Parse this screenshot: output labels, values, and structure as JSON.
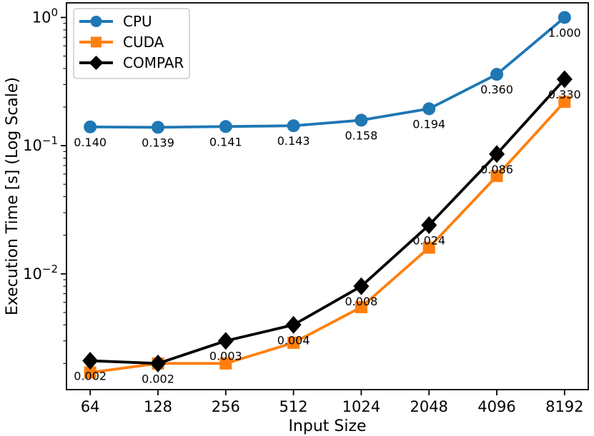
{
  "chart_data": {
    "type": "line",
    "title": "",
    "xlabel": "Input Size",
    "ylabel": "Execution Time [s] (Log Scale)",
    "x_categories": [
      "64",
      "128",
      "256",
      "512",
      "1024",
      "2048",
      "4096",
      "8192"
    ],
    "x_scale": "log2-categorical",
    "y_scale": "log",
    "ylim": [
      0.00125,
      1.3
    ],
    "grid": false,
    "legend_position": "upper left",
    "y_ticks": [
      {
        "base": "10",
        "exp": "0",
        "value": 1
      },
      {
        "base": "10",
        "exp": "−1",
        "value": 0.1
      },
      {
        "base": "10",
        "exp": "−2",
        "value": 0.01
      }
    ],
    "series": [
      {
        "name": "CPU",
        "color": "#1f77b4",
        "marker": "circle",
        "values": [
          0.14,
          0.139,
          0.141,
          0.143,
          0.158,
          0.194,
          0.36,
          1.0
        ],
        "labels": [
          "0.140",
          "0.139",
          "0.141",
          "0.143",
          "0.158",
          "0.194",
          "0.360",
          "1.000"
        ]
      },
      {
        "name": "CUDA",
        "color": "#ff7f0e",
        "marker": "square",
        "values": [
          0.0017,
          0.002,
          0.002,
          0.0029,
          0.0055,
          0.016,
          0.058,
          0.22
        ],
        "labels": []
      },
      {
        "name": "COMPAR",
        "color": "#000000",
        "marker": "diamond",
        "values": [
          0.0021,
          0.002,
          0.003,
          0.004,
          0.008,
          0.024,
          0.086,
          0.33
        ],
        "labels": [
          "0.002",
          "0.002",
          "0.003",
          "0.004",
          "0.008",
          "0.024",
          "0.086",
          "0.330"
        ]
      }
    ]
  }
}
